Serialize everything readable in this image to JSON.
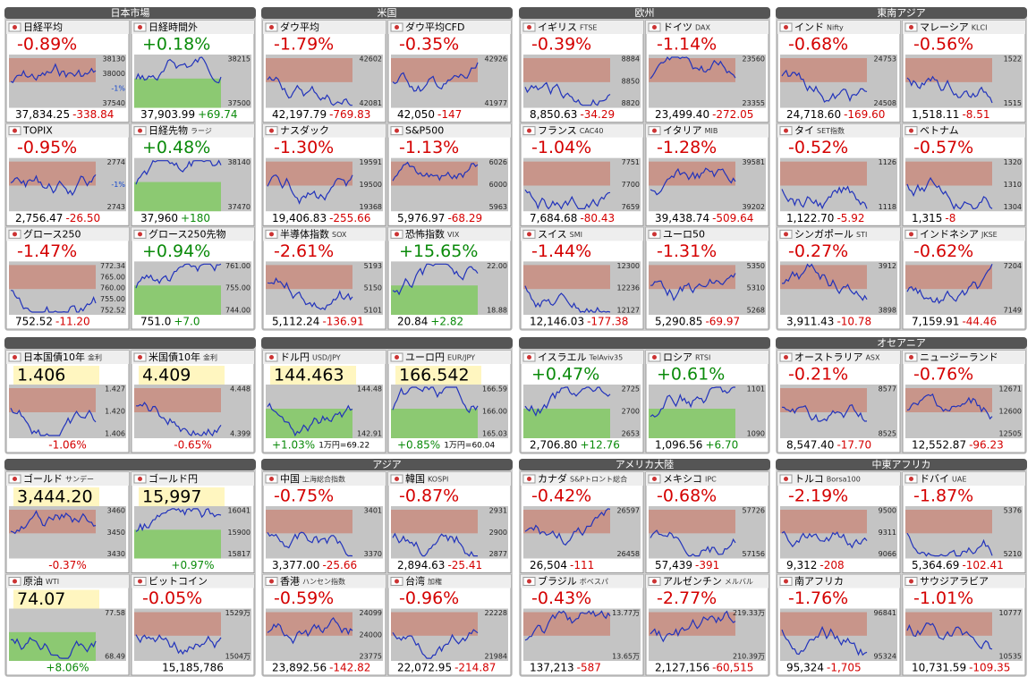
{
  "blocks": [
    {
      "groups": [
        {
          "title": "日本市場",
          "tiles": [
            {
              "name": "日経平均",
              "pct": "-0.89%",
              "price": "37,834.25",
              "chg": "-338.84",
              "axis": [
                "38130",
                "38000",
                "-1%",
                "37540"
              ]
            },
            {
              "name": "日経時間外",
              "pct": "+0.18%",
              "price": "37,903.99",
              "chg": "+69.74",
              "axis": [
                "38215",
                "37500"
              ]
            },
            {
              "name": "TOPIX",
              "pct": "-0.95%",
              "price": "2,756.47",
              "chg": "-26.50",
              "axis": [
                "2774",
                "-1%",
                "2743"
              ]
            },
            {
              "name": "日経先物",
              "code": "ラージ",
              "pct": "+0.48%",
              "price": "37,960",
              "chg": "+180",
              "axis": [
                "38140",
                "37470"
              ]
            },
            {
              "name": "グロース250",
              "pct": "-1.47%",
              "price": "752.52",
              "chg": "-11.20",
              "axis": [
                "772.34",
                "765.00",
                "760.00",
                "755.00",
                "752.52"
              ]
            },
            {
              "name": "グロース250先物",
              "pct": "+0.94%",
              "price": "751.0",
              "chg": "+7.0",
              "axis": [
                "761.00",
                "755.00",
                "744.00"
              ]
            }
          ]
        },
        {
          "title": "米国",
          "tiles": [
            {
              "name": "ダウ平均",
              "pct": "-1.79%",
              "price": "42,197.79",
              "chg": "-769.83",
              "axis": [
                "42602",
                "42081"
              ]
            },
            {
              "name": "ダウ平均CFD",
              "pct": "-0.35%",
              "price": "42,050",
              "chg": "-147",
              "axis": [
                "42926",
                "41977"
              ]
            },
            {
              "name": "ナスダック",
              "pct": "-1.30%",
              "price": "19,406.83",
              "chg": "-255.66",
              "axis": [
                "19591",
                "19500",
                "19368"
              ]
            },
            {
              "name": "S&P500",
              "pct": "-1.13%",
              "price": "5,976.97",
              "chg": "-68.29",
              "axis": [
                "6026",
                "6000",
                "5963"
              ]
            },
            {
              "name": "半導体指数",
              "code": "SOX",
              "pct": "-2.61%",
              "price": "5,112.24",
              "chg": "-136.91",
              "axis": [
                "5193",
                "5150",
                "5101"
              ]
            },
            {
              "name": "恐怖指数",
              "code": "VIX",
              "pct": "+15.65%",
              "price": "20.84",
              "chg": "+2.82",
              "axis": [
                "22.00",
                "18.88"
              ]
            }
          ]
        },
        {
          "title": "欧州",
          "tiles": [
            {
              "name": "イギリス",
              "code": "FTSE",
              "pct": "-0.39%",
              "price": "8,850.63",
              "chg": "-34.29",
              "axis": [
                "8884",
                "8850",
                "8820"
              ]
            },
            {
              "name": "ドイツ",
              "code": "DAX",
              "pct": "-1.14%",
              "price": "23,499.40",
              "chg": "-272.05",
              "axis": [
                "23560",
                "23355"
              ]
            },
            {
              "name": "フランス",
              "code": "CAC40",
              "pct": "-1.04%",
              "price": "7,684.68",
              "chg": "-80.43",
              "axis": [
                "7751",
                "7700",
                "7659"
              ]
            },
            {
              "name": "イタリア",
              "code": "MIB",
              "pct": "-1.28%",
              "price": "39,438.74",
              "chg": "-509.64",
              "axis": [
                "39581",
                "39202"
              ]
            },
            {
              "name": "スイス",
              "code": "SMI",
              "pct": "-1.44%",
              "price": "12,146.03",
              "chg": "-177.38",
              "axis": [
                "12300",
                "12236",
                "12127"
              ]
            },
            {
              "name": "ユーロ50",
              "pct": "-1.31%",
              "price": "5,290.85",
              "chg": "-69.97",
              "axis": [
                "5350",
                "5310",
                "5268"
              ]
            }
          ]
        },
        {
          "title": "東南アジア",
          "tiles": [
            {
              "name": "インド",
              "code": "Nifty",
              "pct": "-0.68%",
              "price": "24,718.60",
              "chg": "-169.60",
              "axis": [
                "24753",
                "24508"
              ]
            },
            {
              "name": "マレーシア",
              "code": "KLCI",
              "pct": "-0.56%",
              "price": "1,518.11",
              "chg": "-8.51",
              "axis": [
                "1522",
                "1515"
              ]
            },
            {
              "name": "タイ",
              "code": "SET指数",
              "pct": "-0.52%",
              "price": "1,122.70",
              "chg": "-5.92",
              "axis": [
                "1126",
                "1118"
              ]
            },
            {
              "name": "ベトナム",
              "pct": "-0.57%",
              "price": "1,315",
              "chg": "-8",
              "axis": [
                "1320",
                "1310",
                "1304"
              ]
            },
            {
              "name": "シンガポール",
              "code": "STI",
              "pct": "-0.27%",
              "price": "3,911.43",
              "chg": "-10.78",
              "axis": [
                "3912",
                "3898"
              ]
            },
            {
              "name": "インドネシア",
              "code": "JKSE",
              "pct": "-0.62%",
              "price": "7,159.91",
              "chg": "-44.46",
              "axis": [
                "7204",
                "7149"
              ]
            }
          ]
        }
      ]
    },
    {
      "groups": [
        {
          "tiles": [
            {
              "kind": "rate",
              "name": "日本国債10年",
              "code": "金利",
              "value": "1.406",
              "pct": "-1.06%",
              "axis": [
                "1.427",
                "1.420",
                "1.406"
              ]
            },
            {
              "kind": "rate",
              "name": "米国債10年",
              "code": "金利",
              "value": "4.409",
              "pct": "-0.65%",
              "axis": [
                "4.448",
                "4.399"
              ]
            }
          ]
        },
        {
          "tiles": [
            {
              "kind": "rate",
              "name": "ドル円",
              "code": "USD/JPY",
              "value": "144.463",
              "pct": "+1.03%",
              "note": "1万円=69.22",
              "axis": [
                "144.48",
                "142.91"
              ]
            },
            {
              "kind": "rate",
              "name": "ユーロ円",
              "code": "EUR/JPY",
              "value": "166.542",
              "pct": "+0.85%",
              "note": "1万円=60.04",
              "axis": [
                "166.59",
                "166.00",
                "165.03"
              ]
            }
          ]
        },
        {
          "tiles": [
            {
              "name": "イスラエル",
              "code": "TelAviv35",
              "pct": "+0.47%",
              "price": "2,706.80",
              "chg": "+12.76",
              "axis": [
                "2725",
                "2700",
                "2653"
              ]
            },
            {
              "name": "ロシア",
              "code": "RTSI",
              "pct": "+0.61%",
              "price": "1,096.56",
              "chg": "+6.70",
              "axis": [
                "1101",
                "1090"
              ]
            }
          ]
        },
        {
          "title": "オセアニア",
          "tiles": [
            {
              "name": "オーストラリア",
              "code": "ASX",
              "pct": "-0.21%",
              "price": "8,547.40",
              "chg": "-17.70",
              "axis": [
                "8577",
                "8525"
              ]
            },
            {
              "name": "ニュージーランド",
              "pct": "-0.76%",
              "price": "12,552.87",
              "chg": "-96.23",
              "axis": [
                "12671",
                "12600",
                "12505"
              ]
            }
          ]
        }
      ]
    },
    {
      "groups": [
        {
          "tiles": [
            {
              "kind": "rate",
              "name": "ゴールド",
              "code": "サンデー",
              "value": "3,444.20",
              "pct": "-0.37%",
              "axis": [
                "3460",
                "3450",
                "3430"
              ]
            },
            {
              "kind": "rate",
              "name": "ゴールド円",
              "value": "15,997",
              "pct": "+0.97%",
              "axis": [
                "16041",
                "15900",
                "15817"
              ]
            },
            {
              "kind": "rate",
              "name": "原油",
              "code": "WTI",
              "value": "74.07",
              "pct": "+8.06%",
              "axis": [
                "77.58",
                "68.49"
              ]
            },
            {
              "name": "ビットコイン",
              "pct": "-0.05%",
              "price": "15,185,786",
              "axis": [
                "1529万",
                "1504万"
              ]
            }
          ]
        },
        {
          "title": "アジア",
          "tiles": [
            {
              "name": "中国",
              "code": "上海総合指数",
              "pct": "-0.75%",
              "price": "3,377.00",
              "chg": "-25.66",
              "axis": [
                "3401",
                "3370"
              ]
            },
            {
              "name": "韓国",
              "code": "KOSPI",
              "pct": "-0.87%",
              "price": "2,894.63",
              "chg": "-25.41",
              "axis": [
                "2931",
                "2900",
                "2877"
              ]
            },
            {
              "name": "香港",
              "code": "ハンセン指数",
              "pct": "-0.59%",
              "price": "23,892.56",
              "chg": "-142.82",
              "axis": [
                "24099",
                "24000",
                "23775"
              ]
            },
            {
              "name": "台湾",
              "code": "加権",
              "pct": "-0.96%",
              "price": "22,072.95",
              "chg": "-214.87",
              "axis": [
                "22228",
                "21984"
              ]
            }
          ]
        },
        {
          "title": "アメリカ大陸",
          "tiles": [
            {
              "name": "カナダ",
              "code": "S&Pトロント総合",
              "pct": "-0.42%",
              "price": "26,504",
              "chg": "-111",
              "axis": [
                "26597",
                "26458"
              ]
            },
            {
              "name": "メキシコ",
              "code": "IPC",
              "pct": "-0.68%",
              "price": "57,439",
              "chg": "-391",
              "axis": [
                "57726",
                "57156"
              ]
            },
            {
              "name": "ブラジル",
              "code": "ボベスパ",
              "pct": "-0.43%",
              "price": "137,213",
              "chg": "-587",
              "axis": [
                "13.77万",
                "13.65万"
              ]
            },
            {
              "name": "アルゼンチン",
              "code": "メルバル",
              "pct": "-2.77%",
              "price": "2,127,156",
              "chg": "-60,515",
              "axis": [
                "219.33万",
                "210.39万"
              ]
            }
          ]
        },
        {
          "title": "中東アフリカ",
          "tiles": [
            {
              "name": "トルコ",
              "code": "Borsa100",
              "pct": "-2.19%",
              "price": "9,312",
              "chg": "-208",
              "axis": [
                "9500",
                "9311",
                "9066"
              ]
            },
            {
              "name": "ドバイ",
              "code": "UAE",
              "pct": "-1.87%",
              "price": "5,364.69",
              "chg": "-102.41",
              "axis": [
                "5376",
                "5210"
              ]
            },
            {
              "name": "南アフリカ",
              "pct": "-1.76%",
              "price": "95,324",
              "chg": "-1,705",
              "axis": [
                "96841",
                "95324"
              ]
            },
            {
              "name": "サウジアラビア",
              "pct": "-1.01%",
              "price": "10,731.59",
              "chg": "-109.35",
              "axis": [
                "10777",
                "10535"
              ]
            }
          ]
        }
      ]
    }
  ]
}
